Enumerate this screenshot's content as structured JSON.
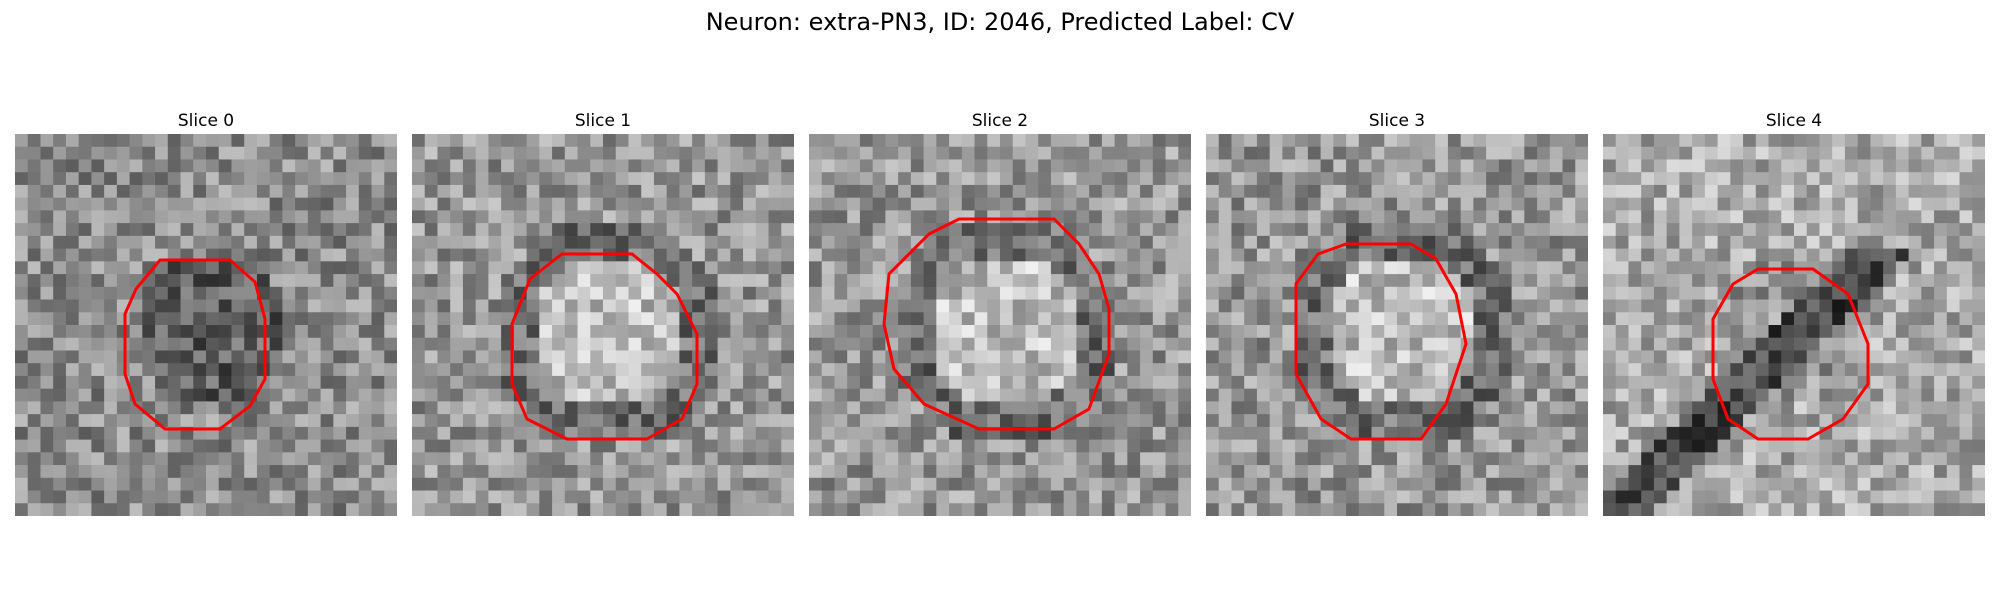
{
  "figure": {
    "title": "Neuron: extra-PN3, ID: 2046, Predicted Label: CV"
  },
  "slices": [
    {
      "title": "Slice 0",
      "contour_color": "#ff0000"
    },
    {
      "title": "Slice 1",
      "contour_color": "#ff0000"
    },
    {
      "title": "Slice 2",
      "contour_color": "#ff0000"
    },
    {
      "title": "Slice 3",
      "contour_color": "#ff0000"
    },
    {
      "title": "Slice 4",
      "contour_color": "#ff0000"
    }
  ]
}
